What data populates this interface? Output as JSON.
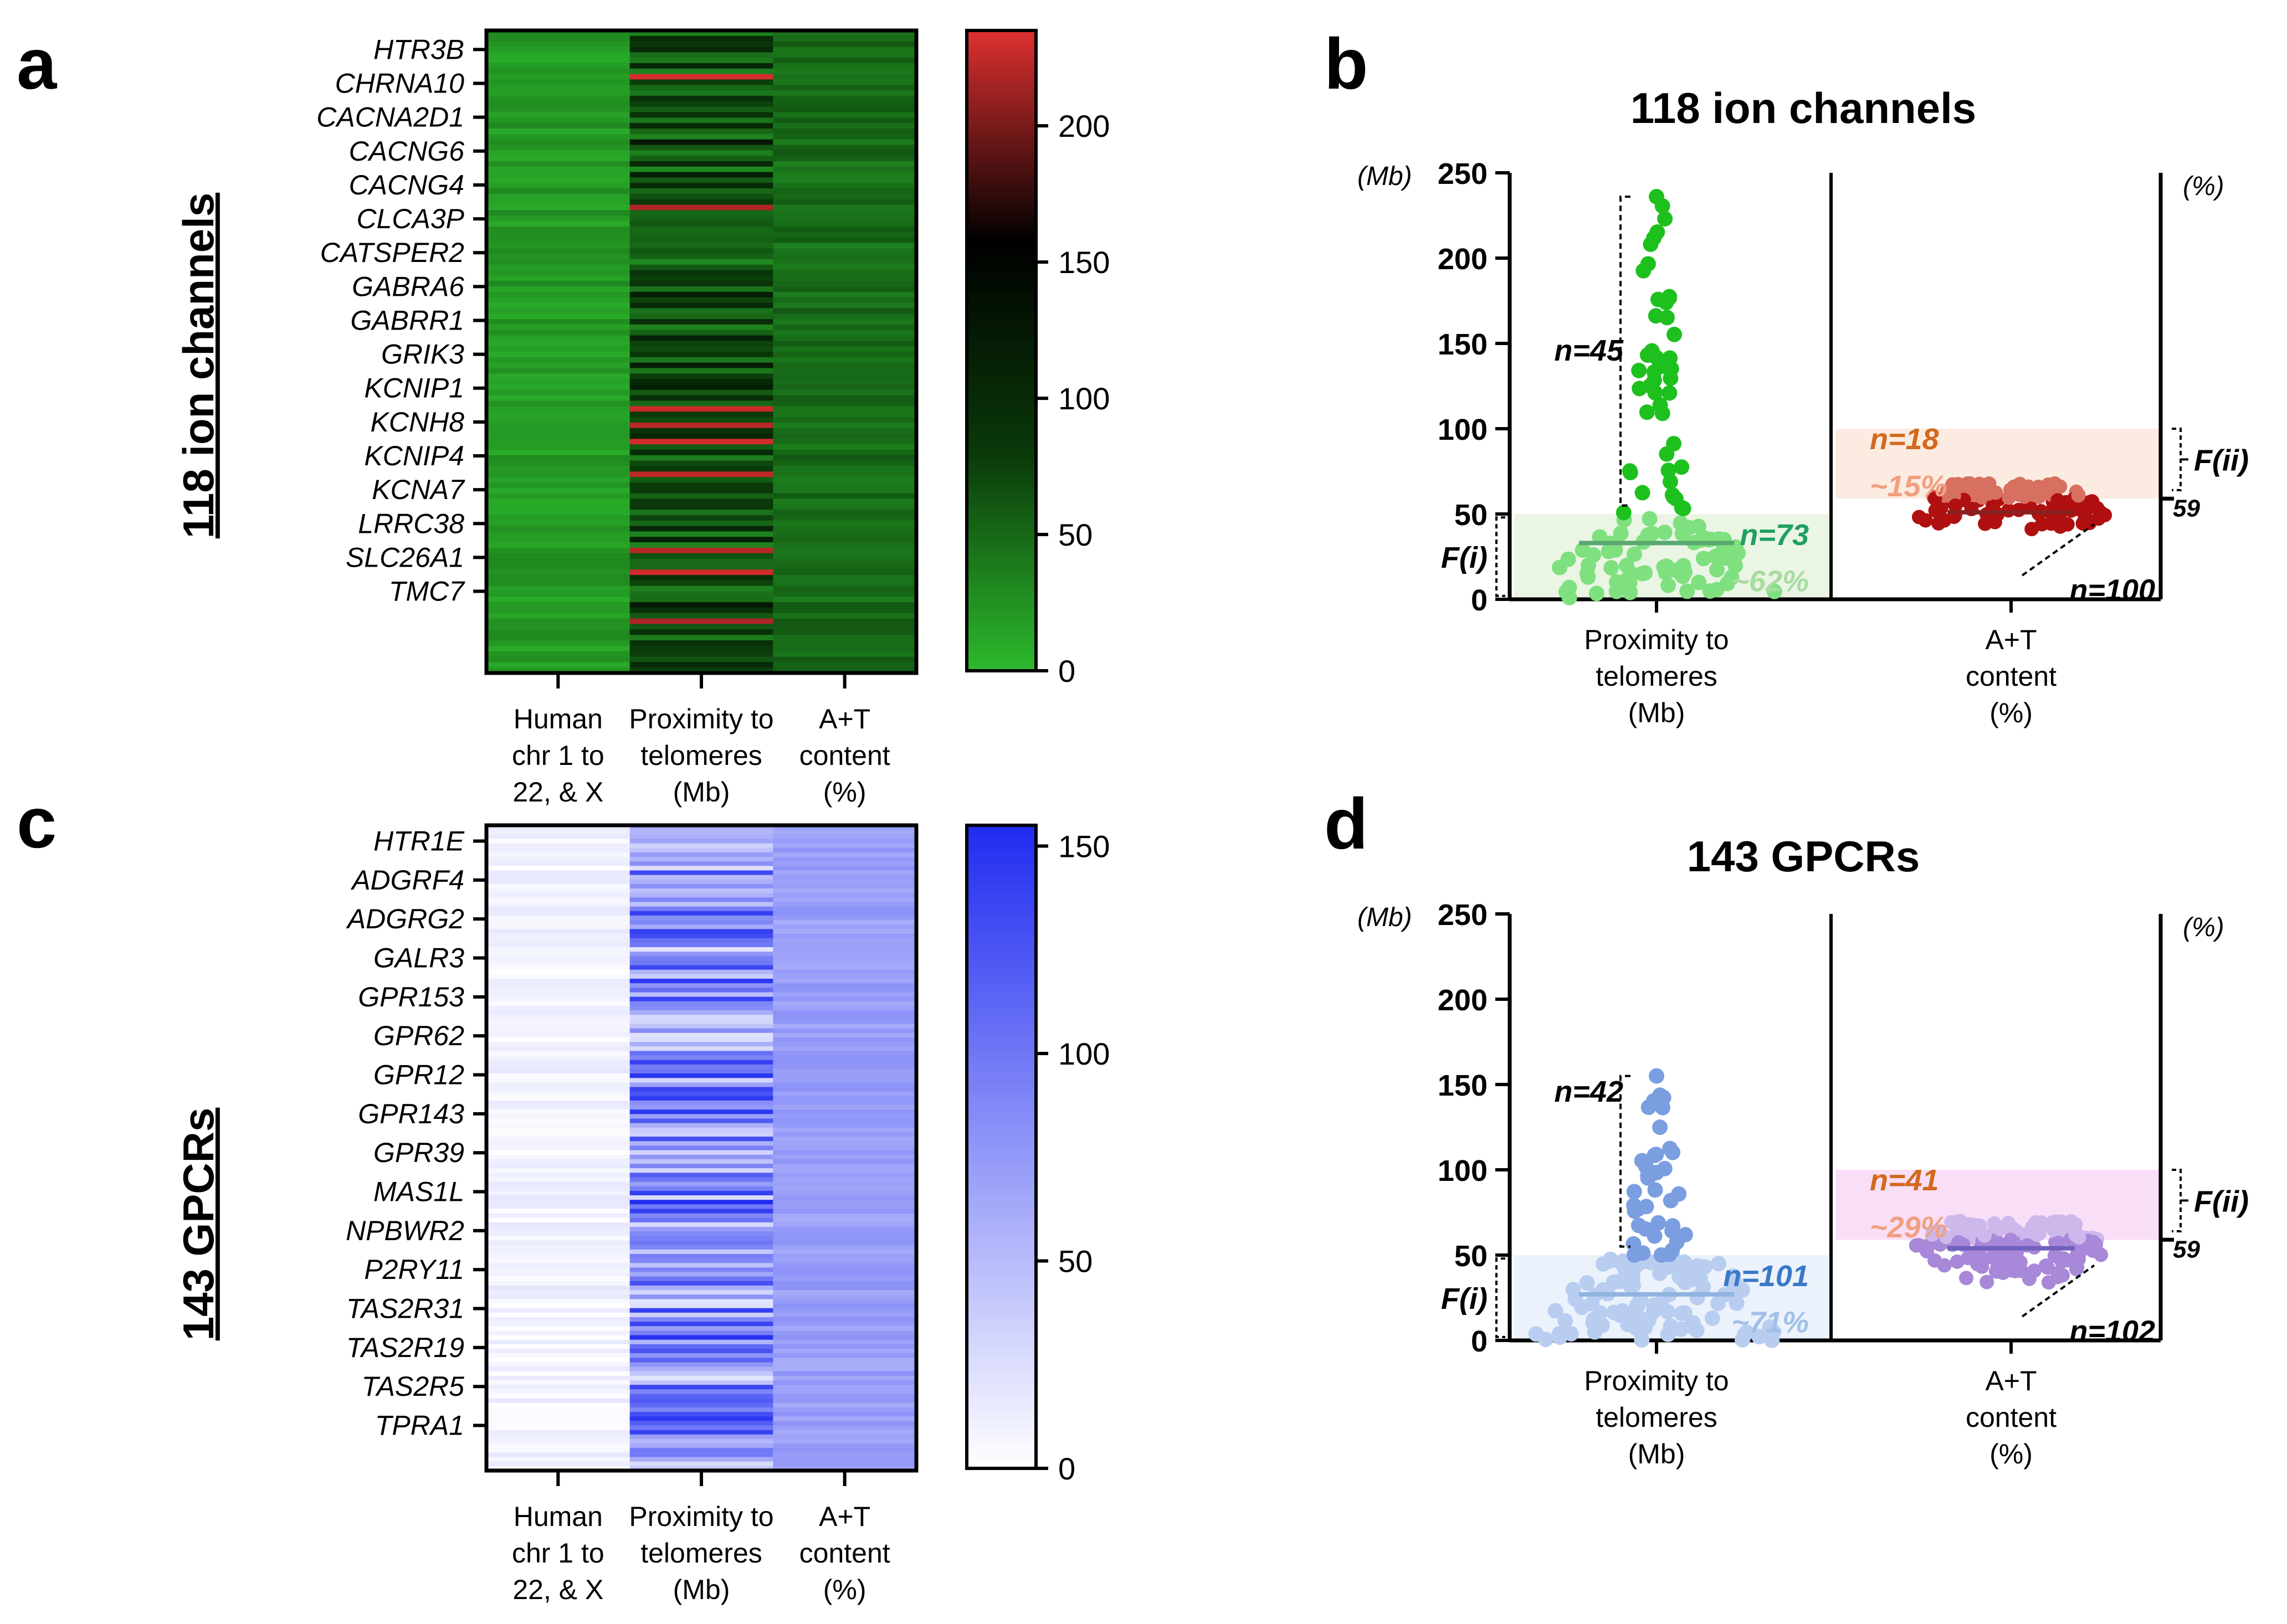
{
  "panels": {
    "a": {
      "letter": "a",
      "side_title": "118 ion channels"
    },
    "b": {
      "letter": "b"
    },
    "c": {
      "letter": "c",
      "side_title": "143 GPCRs"
    },
    "d": {
      "letter": "d"
    }
  },
  "colors": {
    "green": "#2db82d",
    "green_dark": "#0a3a0a",
    "red": "#e03030",
    "blue": "#1f2bf0",
    "blue_light": "#f4f4fc",
    "blue_mid": "#8a8cf0",
    "scatter_green": "#1ec01e",
    "scatter_green_light": "#7fe07f",
    "scatter_red": "#b01010",
    "scatter_red_light": "#d77060",
    "scatter_blue": "#7a9ee0",
    "scatter_blue_light": "#b8cdf0",
    "scatter_purple": "#a888d8",
    "scatter_purple_light": "#cdb8ec",
    "orange_text": "#d2691e",
    "peach_text": "#f0a080",
    "teal_text": "#20a060",
    "lightgreen_text": "#a8dca0",
    "blue_text": "#3a78c8",
    "lightblue_text": "#a0c0e8"
  },
  "chart_data": [
    {
      "type": "heatmap",
      "panel": "a",
      "title": "118 ion channels",
      "row_count": 118,
      "gene_labels": [
        "HTR3B",
        "CHRNA10",
        "CACNA2D1",
        "CACNG6",
        "CACNG4",
        "CLCA3P",
        "CATSPER2",
        "GABRA6",
        "GABRR1",
        "GRIK3",
        "KCNIP1",
        "KCNH8",
        "KCNIP4",
        "KCNA7",
        "LRRC38",
        "SLC26A1",
        "TMC7"
      ],
      "columns": [
        {
          "label_lines": [
            "Human",
            "chr  1 to",
            "22, & X"
          ]
        },
        {
          "label_lines": [
            "Proximity to",
            "telomeres",
            "(Mb)"
          ]
        },
        {
          "label_lines": [
            "A+T",
            "content",
            "(%)"
          ]
        }
      ],
      "colorbar": {
        "ticks": [
          "0",
          "50",
          "100",
          "150",
          "200"
        ],
        "range": [
          0,
          235
        ],
        "colors": [
          "#2db82d",
          "#0a3a0a",
          "#000000",
          "#e03030"
        ]
      }
    },
    {
      "type": "scatter",
      "panel": "b",
      "title": "118 ion channels",
      "left_unit": "(Mb)",
      "right_unit": "(%)",
      "ylim": [
        0,
        250
      ],
      "yticks": [
        "0",
        "50",
        "100",
        "150",
        "200",
        "250"
      ],
      "x_labels": [
        [
          "Proximity to",
          "telomeres",
          "(Mb)"
        ],
        [
          "A+T",
          "content",
          "(%)"
        ]
      ],
      "proximity": {
        "median": 33,
        "max": 236,
        "split": 50,
        "count_above": 45,
        "count_below": 73
      },
      "at": {
        "median": 51,
        "range": [
          40,
          68
        ],
        "threshold_tick": "59",
        "count_high": 18,
        "count_low": 100
      },
      "annotations": {
        "n_above": "n=45",
        "n_below": "n=73",
        "pct_below": "~62%",
        "f_i": "F(i)",
        "n_high": "n=18",
        "pct_high": "~15%",
        "n_low": "n=100",
        "f_ii": "F(ii)",
        "right_tick": "59"
      }
    },
    {
      "type": "heatmap",
      "panel": "c",
      "title": "143 GPCRs",
      "row_count": 143,
      "gene_labels": [
        "HTR1E",
        "ADGRF4",
        "ADGRG2",
        "GALR3",
        "GPR153",
        "GPR62",
        "GPR12",
        "GPR143",
        "GPR39",
        "MAS1L",
        "NPBWR2",
        "P2RY11",
        "TAS2R31",
        "TAS2R19",
        "TAS2R5",
        "TPRA1"
      ],
      "columns": [
        {
          "label_lines": [
            "Human",
            "chr 1 to",
            "22, & X"
          ]
        },
        {
          "label_lines": [
            "Proximity to",
            "telomeres",
            "(Mb)"
          ]
        },
        {
          "label_lines": [
            "A+T",
            "content",
            "(%)"
          ]
        }
      ],
      "colorbar": {
        "ticks": [
          "0",
          "50",
          "100",
          "150"
        ],
        "range": [
          0,
          155
        ],
        "colors": [
          "#ffffff",
          "#1f2bf0"
        ]
      }
    },
    {
      "type": "scatter",
      "panel": "d",
      "title": "143 GPCRs",
      "left_unit": "(Mb)",
      "right_unit": "(%)",
      "ylim": [
        0,
        250
      ],
      "yticks": [
        "0",
        "50",
        "100",
        "150",
        "200",
        "250"
      ],
      "x_labels": [
        [
          "Proximity to",
          "telomeres",
          "(Mb)"
        ],
        [
          "A+T",
          "content",
          "(%)"
        ]
      ],
      "proximity": {
        "median": 27,
        "max": 155,
        "split": 50,
        "count_above": 42,
        "count_below": 101
      },
      "at": {
        "median": 54,
        "range": [
          30,
          70
        ],
        "threshold_tick": "59",
        "count_high": 41,
        "count_low": 102
      },
      "annotations": {
        "n_above": "n=42",
        "n_below": "n=101",
        "pct_below": "~71%",
        "f_i": "F(i)",
        "n_high": "n=41",
        "pct_high": "~29%",
        "n_low": "n=102",
        "f_ii": "F(ii)",
        "right_tick": "59"
      }
    }
  ]
}
